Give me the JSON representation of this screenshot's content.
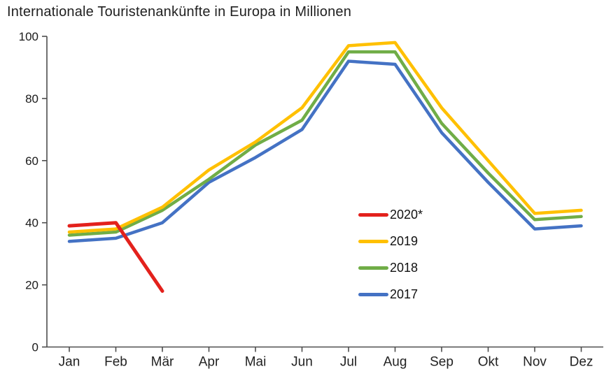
{
  "chart": {
    "title": "Internationale Touristenankünfte in Europa in Millionen"
  },
  "chart_data": {
    "type": "line",
    "title": "Internationale Touristenankünfte in Europa in Millionen",
    "xlabel": "",
    "ylabel": "",
    "categories": [
      "Jan",
      "Feb",
      "Mär",
      "Apr",
      "Mai",
      "Jun",
      "Jul",
      "Aug",
      "Sep",
      "Okt",
      "Nov",
      "Dez"
    ],
    "yticks": [
      0,
      20,
      40,
      60,
      80,
      100
    ],
    "ylim": [
      0,
      100
    ],
    "grid": false,
    "legend_position": "inside-right",
    "series": [
      {
        "name": "2020*",
        "color": "#e3211c",
        "values": [
          39,
          40,
          18,
          null,
          null,
          null,
          null,
          null,
          null,
          null,
          null,
          null
        ]
      },
      {
        "name": "2019",
        "color": "#ffc000",
        "values": [
          37,
          38,
          45,
          57,
          66,
          77,
          97,
          98,
          77,
          60,
          43,
          44
        ]
      },
      {
        "name": "2018",
        "color": "#70ad47",
        "values": [
          36,
          37,
          44,
          54,
          65,
          73,
          95,
          95,
          72,
          56,
          41,
          42
        ]
      },
      {
        "name": "2017",
        "color": "#4472c4",
        "values": [
          34,
          35,
          40,
          53,
          61,
          70,
          92,
          91,
          69,
          53,
          38,
          39
        ]
      }
    ],
    "axis_color": "#4d4d4d"
  }
}
